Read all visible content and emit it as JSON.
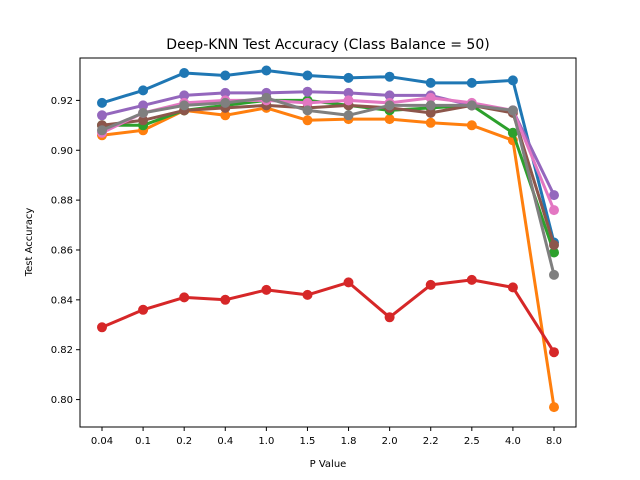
{
  "chart_data": {
    "type": "line",
    "title": "Deep-KNN Test Accuracy (Class Balance = 50)",
    "xlabel": "P Value",
    "ylabel": "Test Accuracy",
    "categories": [
      "0.04",
      "0.1",
      "0.2",
      "0.4",
      "1.0",
      "1.5",
      "1.8",
      "2.0",
      "2.2",
      "2.5",
      "4.0",
      "8.0"
    ],
    "ylim": [
      0.789,
      0.937
    ],
    "yticks": [
      0.8,
      0.82,
      0.84,
      0.86,
      0.88,
      0.9,
      0.92
    ],
    "ytick_labels": [
      "0.80",
      "0.82",
      "0.84",
      "0.86",
      "0.88",
      "0.90",
      "0.92"
    ],
    "grid": false,
    "legend": "none",
    "series": [
      {
        "color": "#1f77b4",
        "values": [
          0.919,
          0.924,
          0.931,
          0.93,
          0.932,
          0.93,
          0.929,
          0.9295,
          0.927,
          0.927,
          0.928,
          0.863
        ]
      },
      {
        "color": "#ff7f0e",
        "values": [
          0.906,
          0.908,
          0.916,
          0.914,
          0.917,
          0.912,
          0.9125,
          0.9125,
          0.911,
          0.91,
          0.904,
          0.797
        ]
      },
      {
        "color": "#2ca02c",
        "values": [
          0.91,
          0.91,
          0.916,
          0.918,
          0.92,
          0.92,
          0.918,
          0.916,
          0.917,
          0.918,
          0.907,
          0.859
        ]
      },
      {
        "color": "#d62728",
        "values": [
          0.829,
          0.836,
          0.841,
          0.84,
          0.844,
          0.842,
          0.847,
          0.833,
          0.846,
          0.848,
          0.845,
          0.819
        ]
      },
      {
        "color": "#9467bd",
        "values": [
          0.914,
          0.918,
          0.922,
          0.923,
          0.923,
          0.9235,
          0.923,
          0.922,
          0.922,
          0.918,
          0.916,
          0.882
        ]
      },
      {
        "color": "#8c564b",
        "values": [
          0.91,
          0.912,
          0.916,
          0.917,
          0.918,
          0.917,
          0.918,
          0.917,
          0.915,
          0.918,
          0.915,
          0.862
        ]
      },
      {
        "color": "#e377c2",
        "values": [
          0.907,
          0.915,
          0.919,
          0.92,
          0.92,
          0.919,
          0.92,
          0.919,
          0.921,
          0.919,
          0.916,
          0.876
        ]
      },
      {
        "color": "#7f7f7f",
        "values": [
          0.908,
          0.915,
          0.918,
          0.919,
          0.921,
          0.916,
          0.914,
          0.918,
          0.918,
          0.918,
          0.916,
          0.85
        ]
      }
    ]
  }
}
